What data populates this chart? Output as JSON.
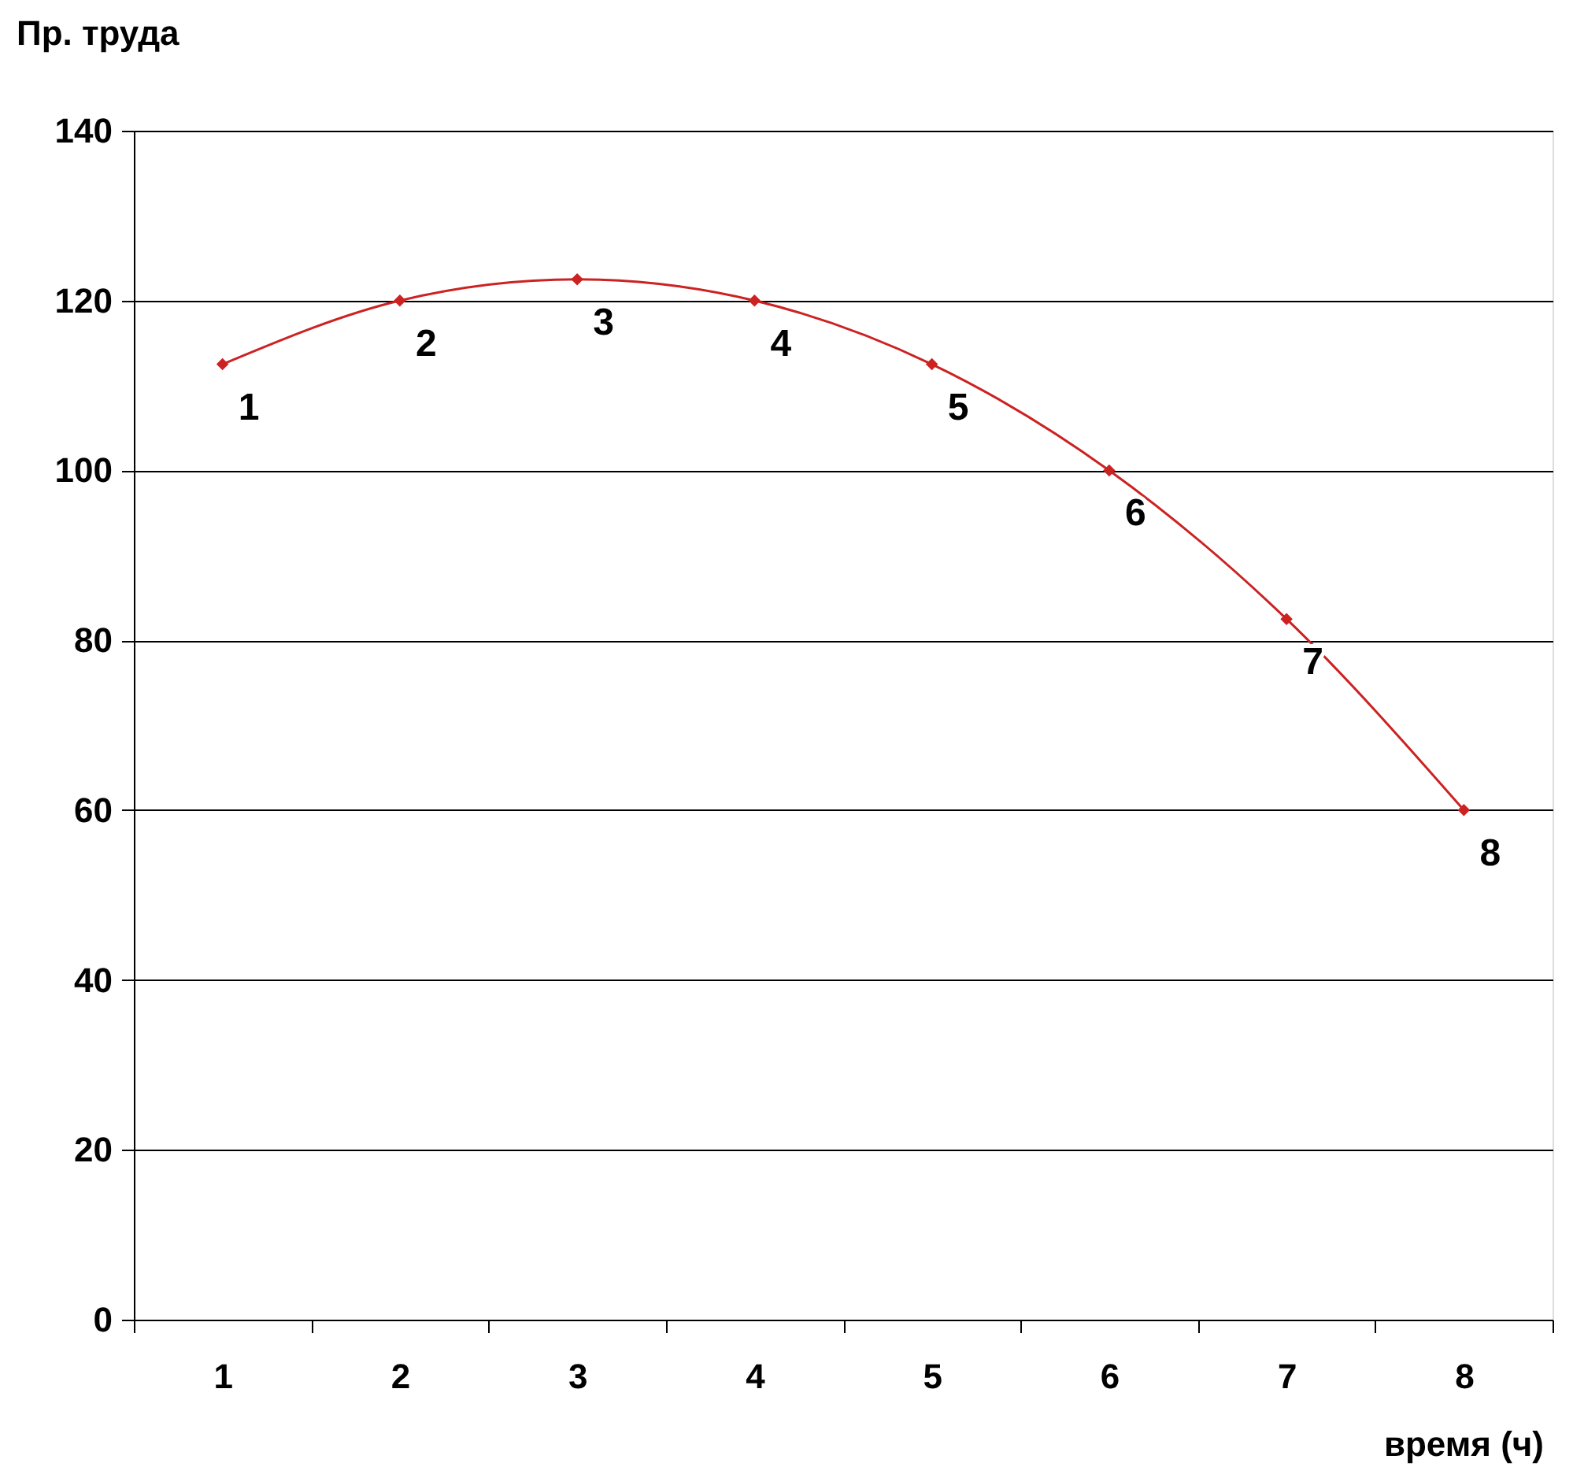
{
  "chart_data": {
    "type": "line",
    "ylabel": "Пр. труда",
    "xlabel": "время (ч)",
    "categories": [
      "1",
      "2",
      "3",
      "4",
      "5",
      "6",
      "7",
      "8"
    ],
    "series": [
      {
        "color": "#cc2222",
        "values": [
          112.5,
          120,
          122.5,
          120,
          112.5,
          100,
          82.5,
          60
        ]
      }
    ],
    "annotations": [
      {
        "text": "1",
        "x": "1",
        "y": 112.5
      },
      {
        "text": "2",
        "x": "2",
        "y": 120
      },
      {
        "text": "3",
        "x": "3",
        "y": 122.5
      },
      {
        "text": "4",
        "x": "4",
        "y": 120
      },
      {
        "text": "5",
        "x": "5",
        "y": 112.5
      },
      {
        "text": "6",
        "x": "6",
        "y": 100
      },
      {
        "text": "7",
        "x": "7",
        "y": 82.5
      },
      {
        "text": "8",
        "x": "8",
        "y": 60
      }
    ],
    "ylim": [
      0,
      140
    ],
    "yticks": [
      0,
      20,
      40,
      60,
      80,
      100,
      120,
      140
    ],
    "grid": "y",
    "marker": "diamond",
    "line_style": "solid",
    "legend": false
  }
}
